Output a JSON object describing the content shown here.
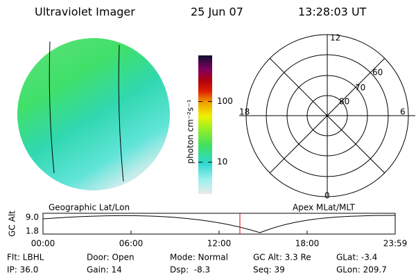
{
  "header": {
    "instrument": "Ultraviolet Imager",
    "date": "25 Jun 07",
    "time": "13:28:03 UT"
  },
  "colorbar": {
    "label": "photon cm⁻²s⁻¹",
    "log": true,
    "lim": [
      3,
      575
    ],
    "ticks": [
      10,
      100
    ]
  },
  "polar": {
    "mlt_labels": [
      "12",
      "18",
      "6",
      "0"
    ],
    "lat_labels": [
      "60",
      "70",
      "80"
    ]
  },
  "panel_titles": {
    "left": "Geographic Lat/Lon",
    "right": "Apex MLat/MLT"
  },
  "timeline": {
    "axis_label": "GC Alt",
    "yticks": [
      "9.0",
      "1.8"
    ],
    "xticks": [
      "00:00",
      "06:00",
      "12:00",
      "18:00",
      "23:59"
    ]
  },
  "footer": {
    "rows": [
      [
        "Flt: LBHL",
        "Door: Open",
        "Mode: Normal",
        "GC Alt: 3.3 Re",
        "GLat: -3.4"
      ],
      [
        "IP: 36.0",
        "Gain: 14",
        "Dsp:  -8.3",
        "Seq: 39",
        "GLon: 209.7"
      ]
    ]
  }
}
